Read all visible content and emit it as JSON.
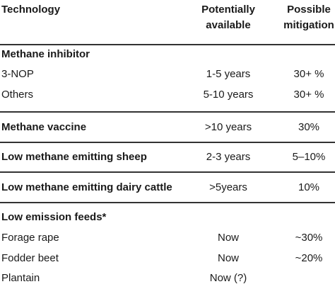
{
  "table": {
    "header": [
      "Technology",
      "Potentially available",
      "Possible mitigation"
    ],
    "rows": [
      [
        "Methane inhibitor"
      ],
      [
        "3-NOP",
        "1-5 years",
        "30+ %"
      ],
      [
        "Others",
        "5-10 years",
        "30+ %"
      ],
      [
        "Methane vaccine",
        ">10 years",
        "30%"
      ],
      [
        "Low methane emitting sheep",
        "2-3 years",
        "5–10%"
      ],
      [
        "Low methane emitting dairy cattle",
        ">5years",
        "10%"
      ],
      [
        "Low emission feeds*"
      ],
      [
        "Forage rape",
        "Now",
        "~30%"
      ],
      [
        "Fodder beet",
        "Now",
        "~20%"
      ],
      [
        "Plantain",
        "Now (?)"
      ]
    ]
  }
}
